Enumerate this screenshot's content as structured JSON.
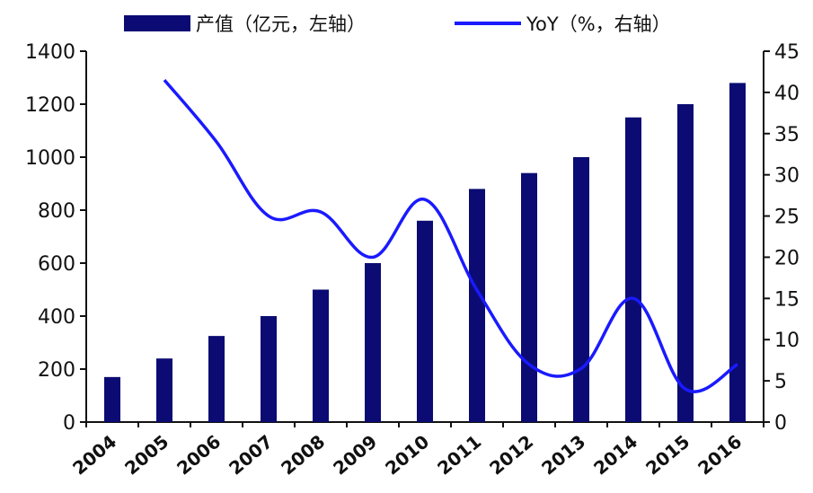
{
  "chart_data": {
    "type": "bar+line",
    "categories": [
      "2004",
      "2005",
      "2006",
      "2007",
      "2008",
      "2009",
      "2010",
      "2011",
      "2012",
      "2013",
      "2014",
      "2015",
      "2016"
    ],
    "series": [
      {
        "name": "产值（亿元，左轴）",
        "type": "bar",
        "axis": "left",
        "values": [
          170,
          240,
          325,
          400,
          500,
          600,
          760,
          880,
          940,
          1000,
          1150,
          1200,
          1280
        ]
      },
      {
        "name": "YoY（%，右轴）",
        "type": "line",
        "axis": "right",
        "values": [
          null,
          41.5,
          34.0,
          25.0,
          25.5,
          20.0,
          27.0,
          16.0,
          7.0,
          6.5,
          15.0,
          4.0,
          7.0
        ]
      }
    ],
    "y_left": {
      "lim": [
        0,
        1400
      ],
      "ticks": [
        "0",
        "200",
        "400",
        "600",
        "800",
        "1000",
        "1200",
        "1400"
      ]
    },
    "y_right": {
      "lim": [
        0,
        45
      ],
      "ticks": [
        "0",
        "5",
        "10",
        "15",
        "20",
        "25",
        "30",
        "35",
        "40",
        "45"
      ]
    },
    "legend_position": "top",
    "grid": false,
    "colors": {
      "bar": "#0b0b73",
      "line": "#1a1aff",
      "axis": "#111111"
    }
  }
}
